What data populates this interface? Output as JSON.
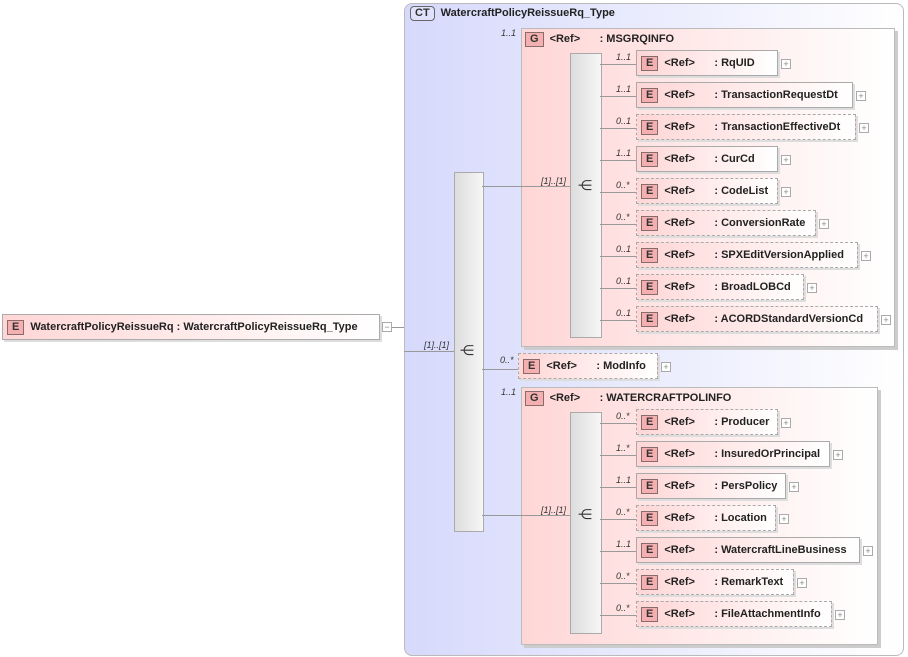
{
  "root": {
    "badge": "E",
    "name": "WatercraftPolicyReissueRq",
    "type": ": WatercraftPolicyReissueRq_Type",
    "toggle": "−"
  },
  "complex_type": {
    "badge": "CT",
    "name": "WatercraftPolicyReissueRq_Type"
  },
  "outer_sequence": {
    "cardinality": "[1]..[1]"
  },
  "ref_label": "<Ref>",
  "groups": [
    {
      "badge": "G",
      "name": ": MSGRQINFO",
      "cardinality": "1..1",
      "sequence_cardinality": "[1]..[1]",
      "children": [
        {
          "name": ": RqUID",
          "card": "1..1"
        },
        {
          "name": ": TransactionRequestDt",
          "card": "1..1"
        },
        {
          "name": ": TransactionEffectiveDt",
          "card": "0..1"
        },
        {
          "name": ": CurCd",
          "card": "1..1"
        },
        {
          "name": ": CodeList",
          "card": "0..*"
        },
        {
          "name": ": ConversionRate",
          "card": "0..*"
        },
        {
          "name": ": SPXEditVersionApplied",
          "card": "0..1"
        },
        {
          "name": ": BroadLOBCd",
          "card": "0..1"
        },
        {
          "name": ": ACORDStandardVersionCd",
          "card": "0..1"
        }
      ]
    },
    {
      "badge": "G",
      "name": ": WATERCRAFTPOLINFO",
      "cardinality": "1..1",
      "sequence_cardinality": "[1]..[1]",
      "children": [
        {
          "name": ": Producer",
          "card": "0..*"
        },
        {
          "name": ": InsuredOrPrincipal",
          "card": "1..*"
        },
        {
          "name": ": PersPolicy",
          "card": "1..1"
        },
        {
          "name": ": Location",
          "card": "0..*"
        },
        {
          "name": ": WatercraftLineBusiness",
          "card": "1..1"
        },
        {
          "name": ": RemarkText",
          "card": "0..*"
        },
        {
          "name": ": FileAttachmentInfo",
          "card": "0..*"
        }
      ]
    }
  ],
  "modinfo": {
    "name": ": ModInfo",
    "card": "0..*"
  },
  "element_badge": "E",
  "plus": "+"
}
